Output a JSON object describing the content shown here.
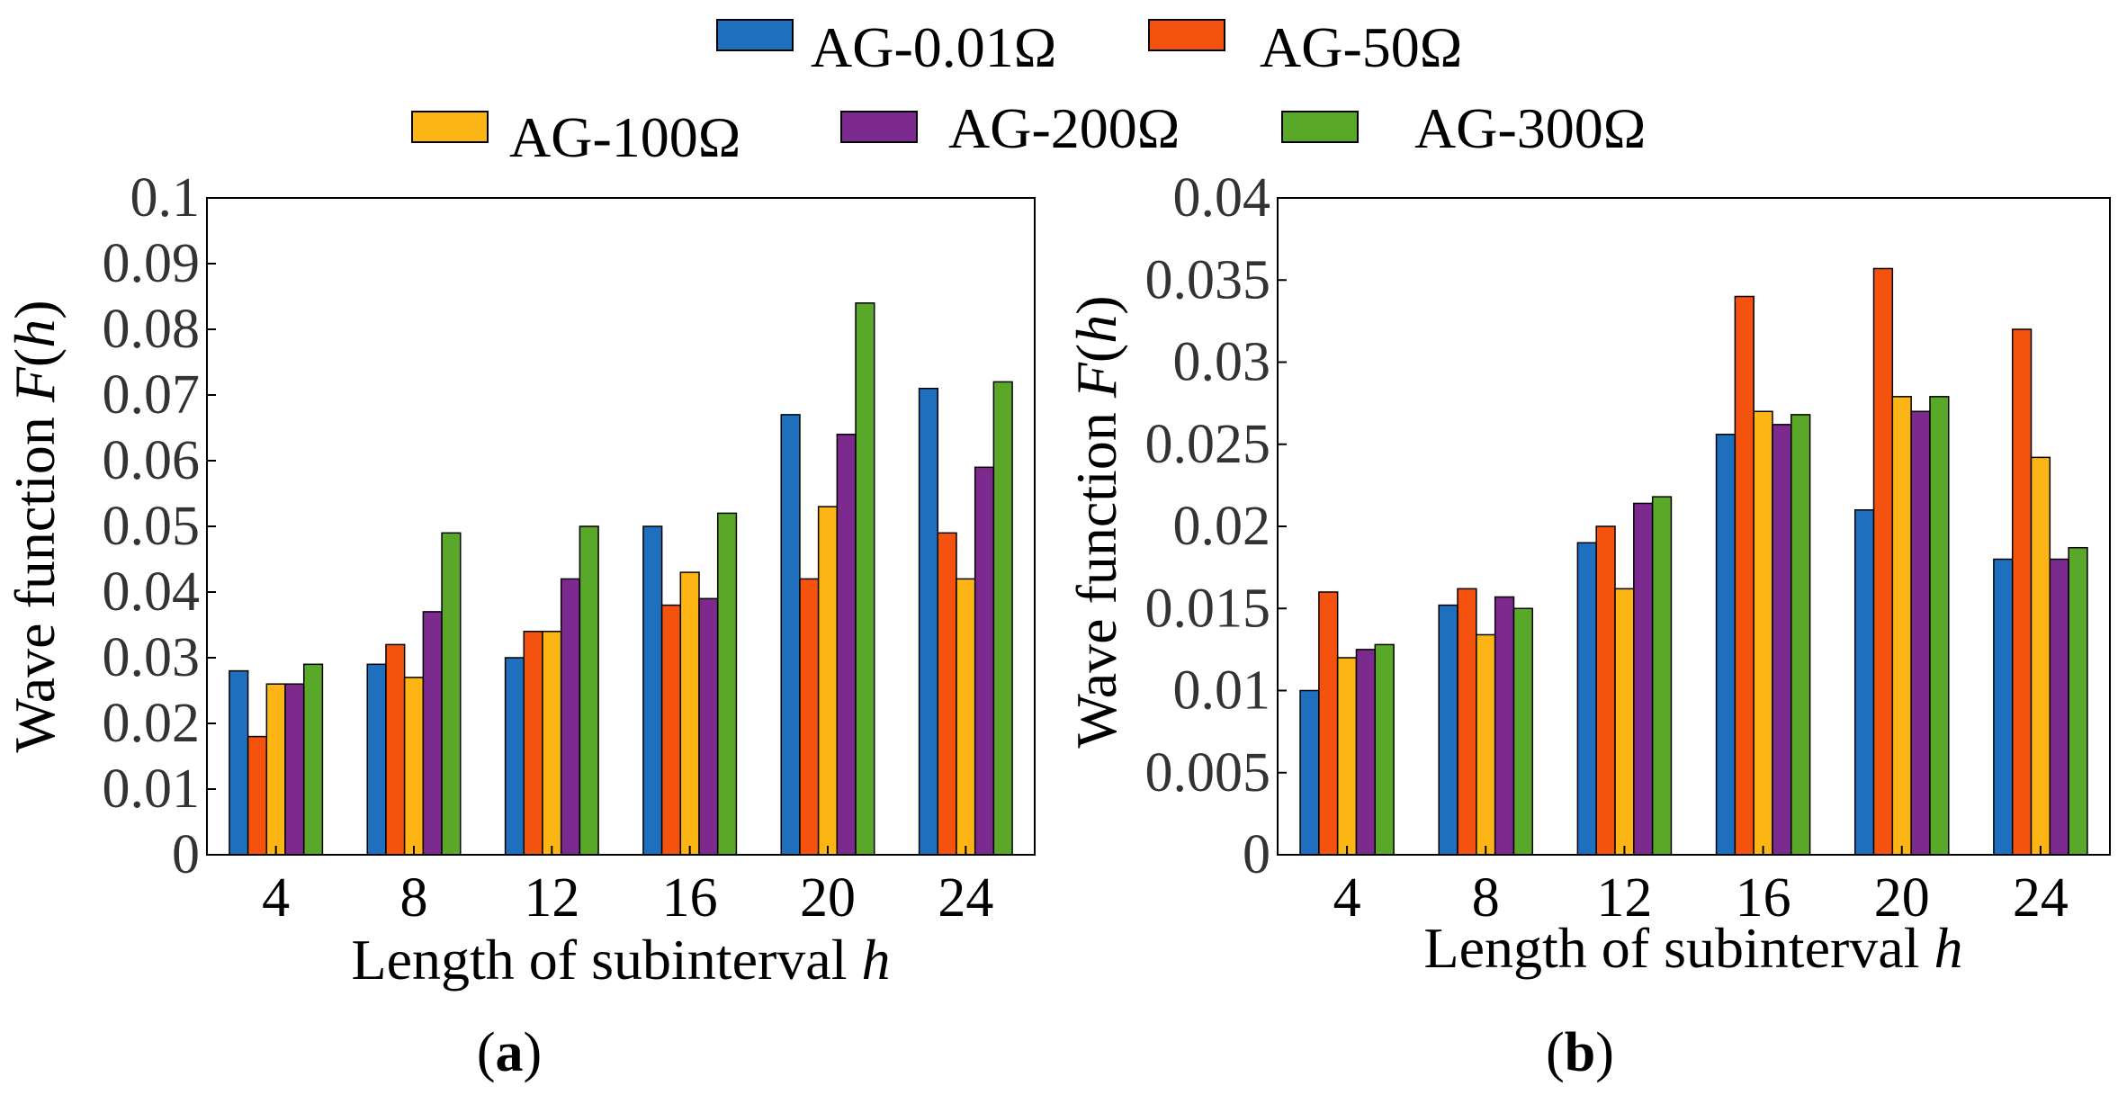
{
  "chart_data": [
    {
      "type": "bar",
      "panel": "a",
      "categories": [
        "4",
        "8",
        "12",
        "16",
        "20",
        "24"
      ],
      "xlabel": "Length of subinterval ",
      "xlabel_var": "h",
      "ylabel": "Wave function ",
      "ylabel_var": "F",
      "ylabel_arg": "h",
      "ylim": [
        0,
        0.1
      ],
      "yticks": [
        "0",
        "0.01",
        "0.02",
        "0.03",
        "0.04",
        "0.05",
        "0.06",
        "0.07",
        "0.08",
        "0.09",
        "0.1"
      ],
      "series": [
        {
          "name": "AG-0.01Ω",
          "values": [
            0.028,
            0.029,
            0.03,
            0.05,
            0.067,
            0.071
          ]
        },
        {
          "name": "AG-50Ω",
          "values": [
            0.018,
            0.032,
            0.034,
            0.038,
            0.042,
            0.049
          ]
        },
        {
          "name": "AG-100Ω",
          "values": [
            0.026,
            0.027,
            0.034,
            0.043,
            0.053,
            0.042
          ]
        },
        {
          "name": "AG-200Ω",
          "values": [
            0.026,
            0.037,
            0.042,
            0.039,
            0.064,
            0.059
          ]
        },
        {
          "name": "AG-300Ω",
          "values": [
            0.029,
            0.049,
            0.05,
            0.052,
            0.084,
            0.072
          ]
        }
      ]
    },
    {
      "type": "bar",
      "panel": "b",
      "categories": [
        "4",
        "8",
        "12",
        "16",
        "20",
        "24"
      ],
      "xlabel": "Length of subinterval ",
      "xlabel_var": "h",
      "ylabel": "Wave function ",
      "ylabel_var": "F",
      "ylabel_arg": "h",
      "ylim": [
        0,
        0.04
      ],
      "yticks": [
        "0",
        "0.005",
        "0.01",
        "0.015",
        "0.02",
        "0.025",
        "0.03",
        "0.035",
        "0.04"
      ],
      "series": [
        {
          "name": "AG-0.01Ω",
          "values": [
            0.01,
            0.0152,
            0.019,
            0.0256,
            0.021,
            0.018
          ]
        },
        {
          "name": "AG-50Ω",
          "values": [
            0.016,
            0.0162,
            0.02,
            0.034,
            0.0357,
            0.032
          ]
        },
        {
          "name": "AG-100Ω",
          "values": [
            0.012,
            0.0134,
            0.0162,
            0.027,
            0.0279,
            0.0242
          ]
        },
        {
          "name": "AG-200Ω",
          "values": [
            0.0125,
            0.0157,
            0.0214,
            0.0262,
            0.027,
            0.018
          ]
        },
        {
          "name": "AG-300Ω",
          "values": [
            0.0128,
            0.015,
            0.0218,
            0.0268,
            0.0279,
            0.0187
          ]
        }
      ]
    }
  ],
  "legend": {
    "items": [
      {
        "name": "AG-0.01Ω",
        "color": "#1f6fbf"
      },
      {
        "name": "AG-50Ω",
        "color": "#f5520f"
      },
      {
        "name": "AG-100Ω",
        "color": "#fdb515"
      },
      {
        "name": "AG-200Ω",
        "color": "#7d2a8e"
      },
      {
        "name": "AG-300Ω",
        "color": "#5aa82a"
      }
    ]
  },
  "panel_labels": {
    "a": "a",
    "b": "b",
    "open": "(",
    "close": ")"
  }
}
